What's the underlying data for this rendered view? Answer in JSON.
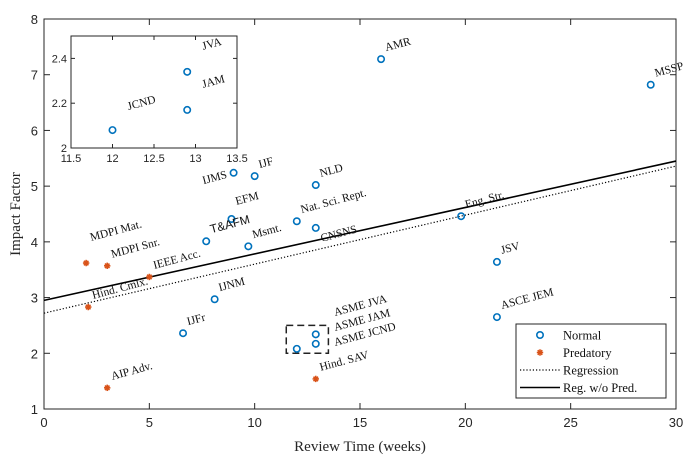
{
  "chart_data": {
    "type": "scatter",
    "xlabel": "Review Time (weeks)",
    "ylabel": "Impact Factor",
    "xlim": [
      0,
      30
    ],
    "ylim": [
      1,
      8
    ],
    "xticks": [
      0,
      5,
      10,
      15,
      20,
      25,
      30
    ],
    "yticks": [
      1,
      2,
      3,
      4,
      5,
      6,
      7,
      8
    ],
    "grid": false,
    "legend_placement": "bottom-right",
    "colors": {
      "normal": "#0072BD",
      "predatory": "#D95319",
      "regression": "#000000"
    },
    "series": [
      {
        "name": "Normal",
        "marker": "circle",
        "points": [
          {
            "label": "AMR",
            "x": 16,
            "y": 7.28
          },
          {
            "label": "MSSP",
            "x": 28.8,
            "y": 6.82
          },
          {
            "label": "IJMS",
            "x": 9.0,
            "y": 5.24
          },
          {
            "label": "IJF",
            "x": 10.0,
            "y": 5.18
          },
          {
            "label": "NLD",
            "x": 12.9,
            "y": 5.02
          },
          {
            "label": "EFM",
            "x": 8.9,
            "y": 4.41
          },
          {
            "label": "T&AFM",
            "x": 7.7,
            "y": 4.01
          },
          {
            "label": "Msmt.",
            "x": 9.7,
            "y": 3.92
          },
          {
            "label": "Nat. Sci. Rept.",
            "x": 12.0,
            "y": 4.37
          },
          {
            "label": "CNSNS",
            "x": 12.9,
            "y": 4.25
          },
          {
            "label": "Eng. Str.",
            "x": 19.8,
            "y": 4.46
          },
          {
            "label": "JSV",
            "x": 21.5,
            "y": 3.64
          },
          {
            "label": "ASCE JEM",
            "x": 21.5,
            "y": 2.65
          },
          {
            "label": "IJNM",
            "x": 8.1,
            "y": 2.97
          },
          {
            "label": "IJFr",
            "x": 6.6,
            "y": 2.36
          },
          {
            "label": "ASME JVA",
            "x": 12.9,
            "y": 2.34
          },
          {
            "label": "ASME JAM",
            "x": 12.9,
            "y": 2.17
          },
          {
            "label": "ASME JCND",
            "x": 12.0,
            "y": 2.08
          }
        ]
      },
      {
        "name": "Predatory",
        "marker": "star",
        "points": [
          {
            "label": "MDPI Mat.",
            "x": 2.0,
            "y": 3.62
          },
          {
            "label": "MDPI Snr.",
            "x": 3.0,
            "y": 3.57
          },
          {
            "label": "IEEE Acc.",
            "x": 5.0,
            "y": 3.37
          },
          {
            "label": "Hind. Cmlx.",
            "x": 2.1,
            "y": 2.83
          },
          {
            "label": "AIP Adv.",
            "x": 3.0,
            "y": 1.38
          },
          {
            "label": "Hind. SAV",
            "x": 12.9,
            "y": 1.54
          }
        ]
      }
    ],
    "lines": [
      {
        "name": "Regression",
        "style": "dotted",
        "x": [
          0,
          30
        ],
        "y": [
          2.72,
          5.36
        ]
      },
      {
        "name": "Reg. w/o Pred.",
        "style": "solid",
        "x": [
          0,
          30
        ],
        "y": [
          2.95,
          5.45
        ]
      }
    ],
    "inset": {
      "xlim": [
        11.5,
        13.5
      ],
      "ylim": [
        2,
        2.5
      ],
      "xticks": [
        11.5,
        12,
        12.5,
        13,
        13.5
      ],
      "yticks": [
        2,
        2.2,
        2.4
      ],
      "points": [
        {
          "label": "JVA",
          "x": 12.9,
          "y": 2.34
        },
        {
          "label": "JAM",
          "x": 12.9,
          "y": 2.17
        },
        {
          "label": "JCND",
          "x": 12.0,
          "y": 2.08
        }
      ]
    }
  }
}
